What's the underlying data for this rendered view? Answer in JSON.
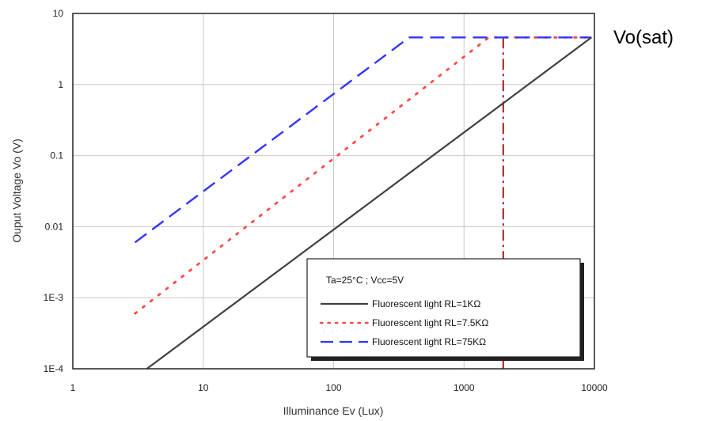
{
  "chart_data": {
    "type": "line",
    "xlabel": "Illuminance Ev (Lux)",
    "ylabel": "Ouput Voltage Vo (V)",
    "x_scale": "log",
    "y_scale": "log",
    "xlim": [
      1,
      10000
    ],
    "ylim": [
      0.0001,
      10
    ],
    "x_ticks": [
      1,
      10,
      100,
      1000,
      10000
    ],
    "x_tick_labels": [
      "1",
      "10",
      "100",
      "1000",
      "10000"
    ],
    "y_ticks": [
      0.0001,
      0.001,
      0.01,
      0.1,
      1,
      10
    ],
    "y_tick_labels": [
      "1E-4",
      "1E-3",
      "0.01",
      "0.1",
      "1",
      "10"
    ],
    "grid": true,
    "legend_placement": "bottom-right",
    "legend_title": "Ta=25°C ; Vcc=5V",
    "series": [
      {
        "name": "Fluorescent light  RL=1KΩ",
        "style": "solid",
        "color": "#404040",
        "x": [
          3.7,
          9500
        ],
        "y": [
          0.0001,
          4.6
        ]
      },
      {
        "name": "Fluorescent light  RL=7.5KΩ",
        "style": "dotted",
        "color": "#ff4a4a",
        "x": [
          3,
          1550,
          9500
        ],
        "y": [
          0.0006,
          4.6,
          4.6
        ]
      },
      {
        "name": "Fluorescent light  RL=75KΩ",
        "style": "dashed",
        "color": "#3333ff",
        "x": [
          3,
          380,
          9500
        ],
        "y": [
          0.006,
          4.6,
          4.6
        ]
      }
    ],
    "annotations": [
      {
        "text": "Vo(sat)",
        "x": 10000,
        "y": 4.6
      },
      {
        "type": "vertical-dashdot-line",
        "color": "#b03030",
        "x": 2000,
        "y_from": 0.0001,
        "y_to": 4.6
      }
    ]
  }
}
